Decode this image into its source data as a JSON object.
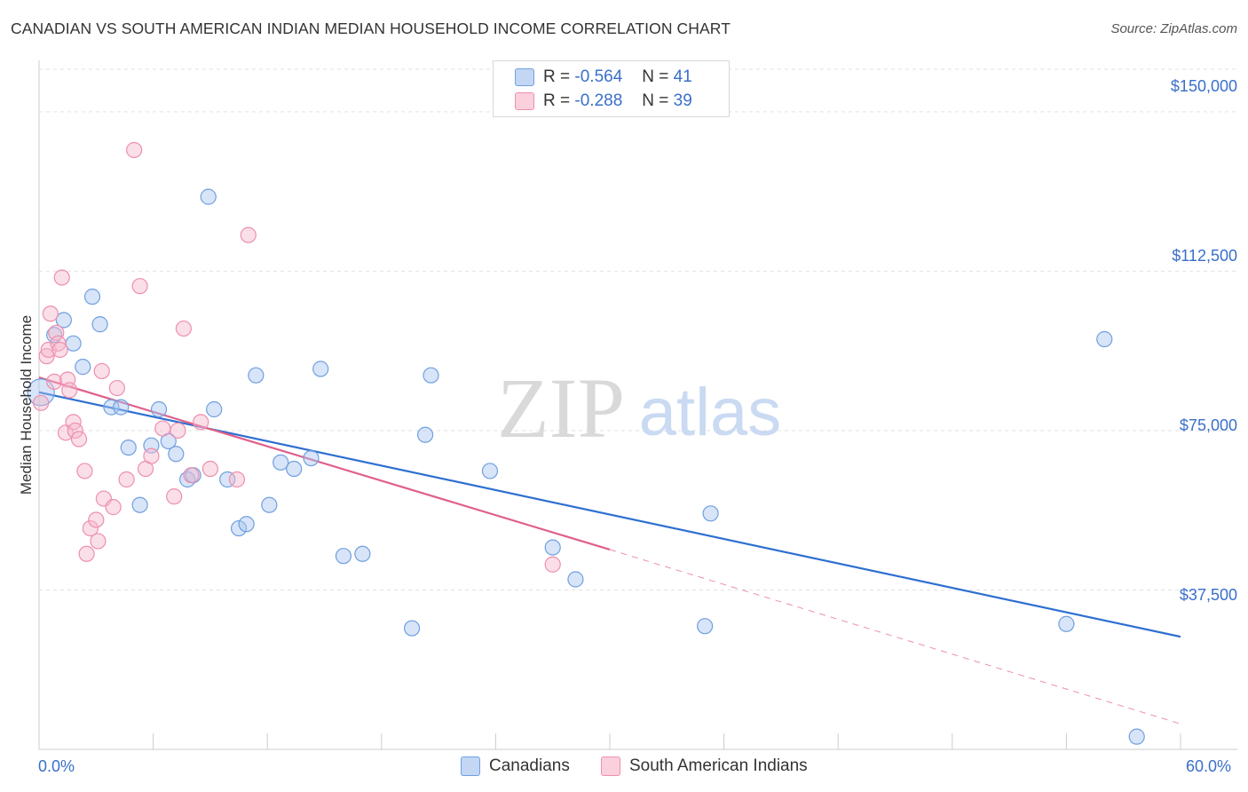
{
  "title": "CANADIAN VS SOUTH AMERICAN INDIAN MEDIAN HOUSEHOLD INCOME CORRELATION CHART",
  "source": "Source: ZipAtlas.com",
  "watermark": {
    "zip": "ZIP",
    "atlas": "atlas"
  },
  "legend_top": {
    "rows": [
      {
        "r_label": "R =",
        "r_value": "-0.564",
        "n_label": "N =",
        "n_value": "41",
        "color": "#a8c6f0"
      },
      {
        "r_label": "R =",
        "r_value": "-0.288",
        "n_label": "N =",
        "n_value": "39",
        "color": "#f5b8cb"
      }
    ]
  },
  "legend_bottom": [
    "Canadians",
    "South American Indians"
  ],
  "chart_data": {
    "type": "scatter",
    "title": "CANADIAN VS SOUTH AMERICAN INDIAN MEDIAN HOUSEHOLD INCOME CORRELATION CHART",
    "xlabel": "",
    "ylabel": "Median Household Income",
    "x_tick_labels": [
      "0.0%",
      "60.0%"
    ],
    "y_tick_labels": [
      "$150,000",
      "$112,500",
      "$75,000",
      "$37,500"
    ],
    "xlim": [
      0,
      60
    ],
    "ylim": [
      0,
      160000
    ],
    "grid": true,
    "colors": {
      "Canadians": "#6f9fe0",
      "South American Indians": "#ee8fae",
      "blue_line": "#2e6fd1",
      "pink_line": "#e0608a"
    },
    "series": [
      {
        "name": "Canadians",
        "points": [
          [
            0.1,
            84000
          ],
          [
            0.8,
            97500
          ],
          [
            1.3,
            101000
          ],
          [
            1.8,
            95500
          ],
          [
            2.3,
            90000
          ],
          [
            2.8,
            106500
          ],
          [
            3.2,
            100000
          ],
          [
            3.8,
            80500
          ],
          [
            4.3,
            80500
          ],
          [
            4.7,
            71000
          ],
          [
            5.3,
            57500
          ],
          [
            5.9,
            71500
          ],
          [
            6.3,
            80000
          ],
          [
            6.8,
            72500
          ],
          [
            7.2,
            69500
          ],
          [
            7.8,
            63500
          ],
          [
            8.1,
            64500
          ],
          [
            8.9,
            130000
          ],
          [
            9.2,
            80000
          ],
          [
            9.9,
            63500
          ],
          [
            10.5,
            52000
          ],
          [
            10.9,
            53000
          ],
          [
            11.4,
            88000
          ],
          [
            12.1,
            57500
          ],
          [
            12.7,
            67500
          ],
          [
            13.4,
            66000
          ],
          [
            14.3,
            68500
          ],
          [
            14.8,
            89500
          ],
          [
            16.0,
            45500
          ],
          [
            17.0,
            46000
          ],
          [
            19.6,
            28500
          ],
          [
            20.3,
            74000
          ],
          [
            20.6,
            88000
          ],
          [
            23.7,
            65500
          ],
          [
            27.0,
            47500
          ],
          [
            28.2,
            40000
          ],
          [
            35.0,
            29000
          ],
          [
            35.3,
            55500
          ],
          [
            54.0,
            29500
          ],
          [
            56.0,
            96500
          ],
          [
            57.7,
            3000
          ]
        ],
        "trend": {
          "x": [
            0,
            60
          ],
          "y": [
            84000,
            26500
          ]
        }
      },
      {
        "name": "South American Indians",
        "points": [
          [
            0.1,
            81500
          ],
          [
            0.4,
            92500
          ],
          [
            0.5,
            94000
          ],
          [
            0.6,
            102500
          ],
          [
            0.8,
            86500
          ],
          [
            0.9,
            98000
          ],
          [
            1.0,
            95500
          ],
          [
            1.1,
            94000
          ],
          [
            1.2,
            111000
          ],
          [
            1.4,
            74500
          ],
          [
            1.5,
            87000
          ],
          [
            1.6,
            84500
          ],
          [
            1.8,
            77000
          ],
          [
            1.9,
            75000
          ],
          [
            2.1,
            73000
          ],
          [
            2.4,
            65500
          ],
          [
            2.5,
            46000
          ],
          [
            2.7,
            52000
          ],
          [
            3.0,
            54000
          ],
          [
            3.1,
            49000
          ],
          [
            3.3,
            89000
          ],
          [
            3.4,
            59000
          ],
          [
            3.9,
            57000
          ],
          [
            4.1,
            85000
          ],
          [
            4.6,
            63500
          ],
          [
            5.0,
            141000
          ],
          [
            5.3,
            109000
          ],
          [
            5.6,
            66000
          ],
          [
            5.9,
            69000
          ],
          [
            6.5,
            75500
          ],
          [
            7.1,
            59500
          ],
          [
            7.3,
            75000
          ],
          [
            7.6,
            99000
          ],
          [
            8.0,
            64500
          ],
          [
            8.5,
            77000
          ],
          [
            9.0,
            66000
          ],
          [
            10.4,
            63500
          ],
          [
            11.0,
            121000
          ],
          [
            27.0,
            43500
          ]
        ],
        "trend": {
          "x": [
            0,
            30
          ],
          "y": [
            87500,
            47000
          ]
        },
        "trend_dashed": {
          "x": [
            30,
            60
          ],
          "y": [
            47000,
            6000
          ]
        }
      }
    ]
  }
}
